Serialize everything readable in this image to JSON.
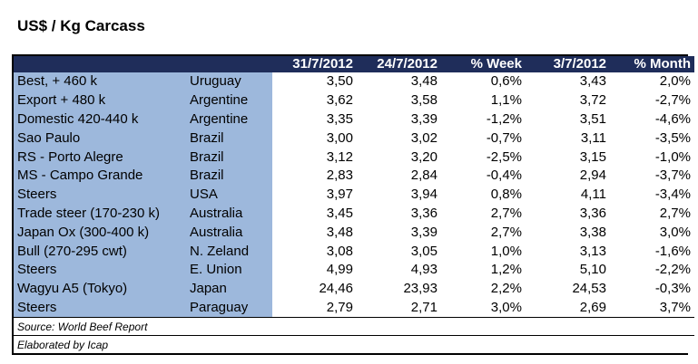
{
  "title": "US$ / Kg Carcass",
  "headers": [
    "",
    "",
    "31/7/2012",
    "24/7/2012",
    "% Week",
    "3/7/2012",
    "% Month"
  ],
  "rows": [
    {
      "name": "Best, + 460 k",
      "country": "Uruguay",
      "v1": "3,50",
      "v2": "3,48",
      "week": "0,6%",
      "v3": "3,43",
      "month": "2,0%"
    },
    {
      "name": "Export + 480 k",
      "country": "Argentine",
      "v1": "3,62",
      "v2": "3,58",
      "week": "1,1%",
      "v3": "3,72",
      "month": "-2,7%"
    },
    {
      "name": "Domestic 420-440 k",
      "country": "Argentine",
      "v1": "3,35",
      "v2": "3,39",
      "week": "-1,2%",
      "v3": "3,51",
      "month": "-4,6%"
    },
    {
      "name": "Sao Paulo",
      "country": "Brazil",
      "v1": "3,00",
      "v2": "3,02",
      "week": "-0,7%",
      "v3": "3,11",
      "month": "-3,5%"
    },
    {
      "name": "RS - Porto Alegre",
      "country": "Brazil",
      "v1": "3,12",
      "v2": "3,20",
      "week": "-2,5%",
      "v3": "3,15",
      "month": "-1,0%"
    },
    {
      "name": "MS - Campo Grande",
      "country": "Brazil",
      "v1": "2,83",
      "v2": "2,84",
      "week": "-0,4%",
      "v3": "2,94",
      "month": "-3,7%"
    },
    {
      "name": "Steers",
      "country": "USA",
      "v1": "3,97",
      "v2": "3,94",
      "week": "0,8%",
      "v3": "4,11",
      "month": "-3,4%"
    },
    {
      "name": "Trade steer (170-230 k)",
      "country": "Australia",
      "v1": "3,45",
      "v2": "3,36",
      "week": "2,7%",
      "v3": "3,36",
      "month": "2,7%"
    },
    {
      "name": "Japan Ox (300-400 k)",
      "country": "Australia",
      "v1": "3,48",
      "v2": "3,39",
      "week": "2,7%",
      "v3": "3,38",
      "month": "3,0%"
    },
    {
      "name": "Bull (270-295 cwt)",
      "country": "N. Zeland",
      "v1": "3,08",
      "v2": "3,05",
      "week": "1,0%",
      "v3": "3,13",
      "month": "-1,6%"
    },
    {
      "name": "Steers",
      "country": "E. Union",
      "v1": "4,99",
      "v2": "4,93",
      "week": "1,2%",
      "v3": "5,10",
      "month": "-2,2%"
    },
    {
      "name": "Wagyu A5 (Tokyo)",
      "country": "Japan",
      "v1": "24,46",
      "v2": "23,93",
      "week": "2,2%",
      "v3": "24,53",
      "month": "-0,3%"
    },
    {
      "name": "Steers",
      "country": "Paraguay",
      "v1": "2,79",
      "v2": "2,71",
      "week": "3,0%",
      "v3": "2,69",
      "month": "3,7%"
    }
  ],
  "source": "Source: World Beef Report",
  "elaborated": "Elaborated by Icap",
  "colors": {
    "header_bg": "#1f2d5a",
    "label_bg": "#9db8dc"
  }
}
